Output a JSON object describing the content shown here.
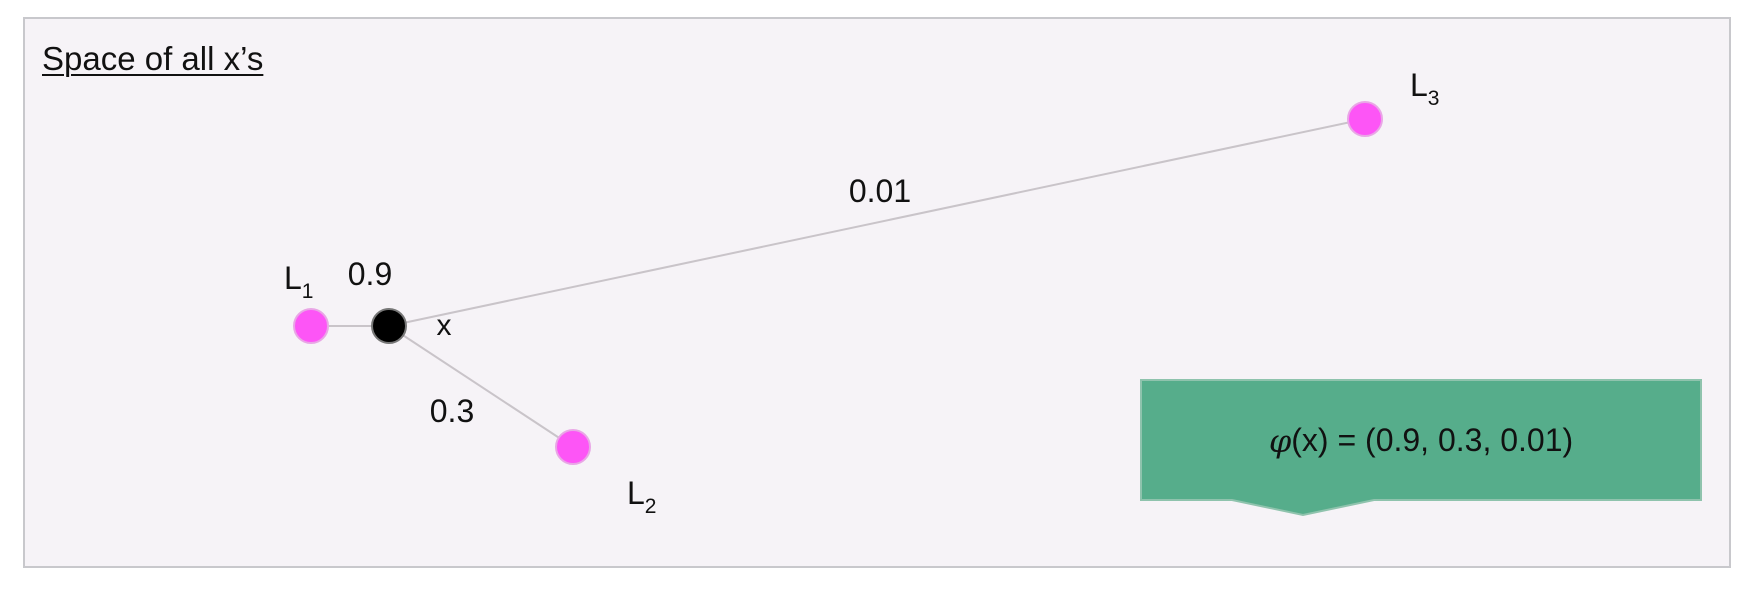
{
  "diagram": {
    "title": "Space of all x’s",
    "point_x_label": "x",
    "landmarks": [
      {
        "letter": "L",
        "index": "1",
        "weight": "0.9"
      },
      {
        "letter": "L",
        "index": "2",
        "weight": "0.3"
      },
      {
        "letter": "L",
        "index": "3",
        "weight": "0.01"
      }
    ],
    "formula": {
      "symbol": "φ",
      "text": "(x) = (0.9, 0.3, 0.01)"
    }
  },
  "colors": {
    "panel_background": "#f6f3f7",
    "panel_border": "#c8c8cc",
    "landmark": "#fd55f6",
    "point": "#000000",
    "connector": "#c9c4c9",
    "callout": "#56ad8b",
    "text": "#111111"
  }
}
